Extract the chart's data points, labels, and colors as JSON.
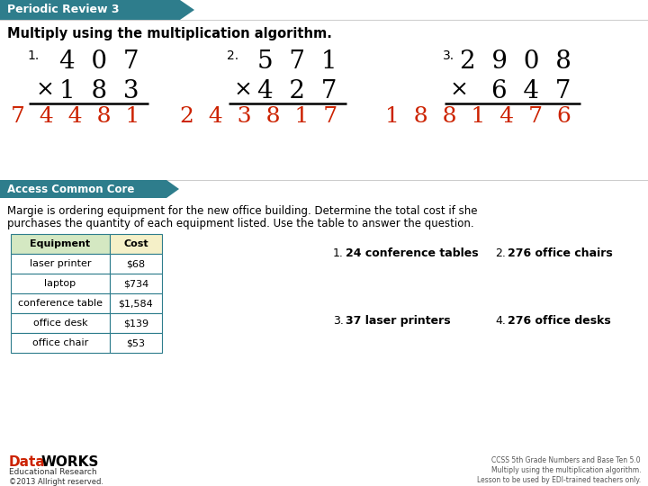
{
  "title_bar": "Periodic Review 3",
  "title_bar_color": "#2e7d8c",
  "section1_title": "Multiply using the multiplication algorithm.",
  "problems": [
    {
      "number": "1.",
      "top": "4  0  7",
      "bottom": "1  8  3",
      "answer": "7  4  4  8  1"
    },
    {
      "number": "2.",
      "top": "5  7  1",
      "bottom": "4  2  7",
      "answer": "2  4  3  8  1  7"
    },
    {
      "number": "3.",
      "top": "2  9  0  8",
      "bottom": "6  4  7",
      "answer": "1  8  8  1  4  7  6"
    }
  ],
  "section2_bar": "Access Common Core",
  "paragraph_line1": "Margie is ordering equipment for the new office building. Determine the total cost if she",
  "paragraph_line2": "purchases the quantity of each equipment listed. Use the table to answer the question.",
  "table_headers": [
    "Equipment",
    "Cost"
  ],
  "table_rows": [
    [
      "laser printer",
      "$68"
    ],
    [
      "laptop",
      "$734"
    ],
    [
      "conference table",
      "$1,584"
    ],
    [
      "office desk",
      "$139"
    ],
    [
      "office chair",
      "$53"
    ]
  ],
  "q1": "24 conference tables",
  "q2": "276 office chairs",
  "q3": "37 laser printers",
  "q4": "276 office desks",
  "footer_right1": "CCSS 5th Grade Numbers and Base Ten 5.0",
  "footer_right2": "Multiply using the multiplication algorithm.",
  "footer_right3": "Lesson to be used by EDI-trained teachers only.",
  "answer_color": "#cc2200",
  "teal": "#2e7d8c",
  "bg_color": "#ffffff",
  "text_color": "#000000",
  "header_bg": "#d4e8c2",
  "cost_bg": "#f5f0c8"
}
